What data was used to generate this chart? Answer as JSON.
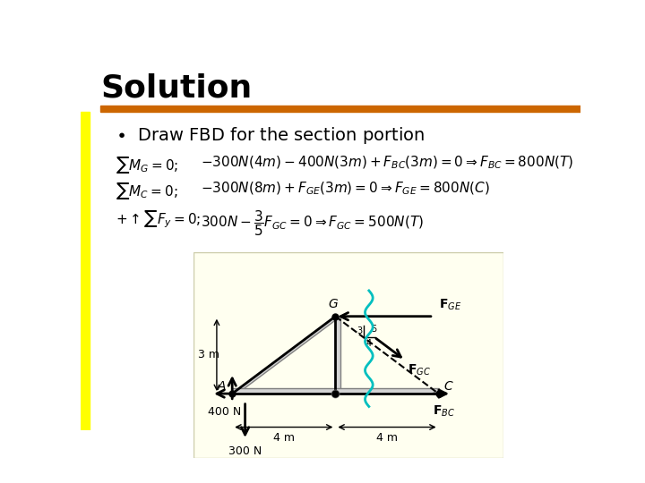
{
  "title": "Solution",
  "bullet_text": "Draw FBD for the section portion",
  "bg_color": "#ffffff",
  "yellow_bar_color": "#ffff00",
  "orange_bar_color": "#cc6600",
  "slide_bg": "#ffffff",
  "diagram_bg": "#fffff0",
  "equations": [
    "\\sum M_G = 0;\\quad -300N(4m) - 400N(3m) + F_{BC}(3m) = 0 \\Rightarrow F_{BC} = 800N(T)",
    "\\sum M_C = 0;\\quad -300N(8m) + F_{GE}(3m) = 0 \\Rightarrow F_{GE} = 800N(C)",
    "+ \\uparrow \\sum F_y = 0;\\quad 300N - \\frac{3}{5}F_{GC} = 0 \\Rightarrow F_{GC} = 500N(T)"
  ]
}
